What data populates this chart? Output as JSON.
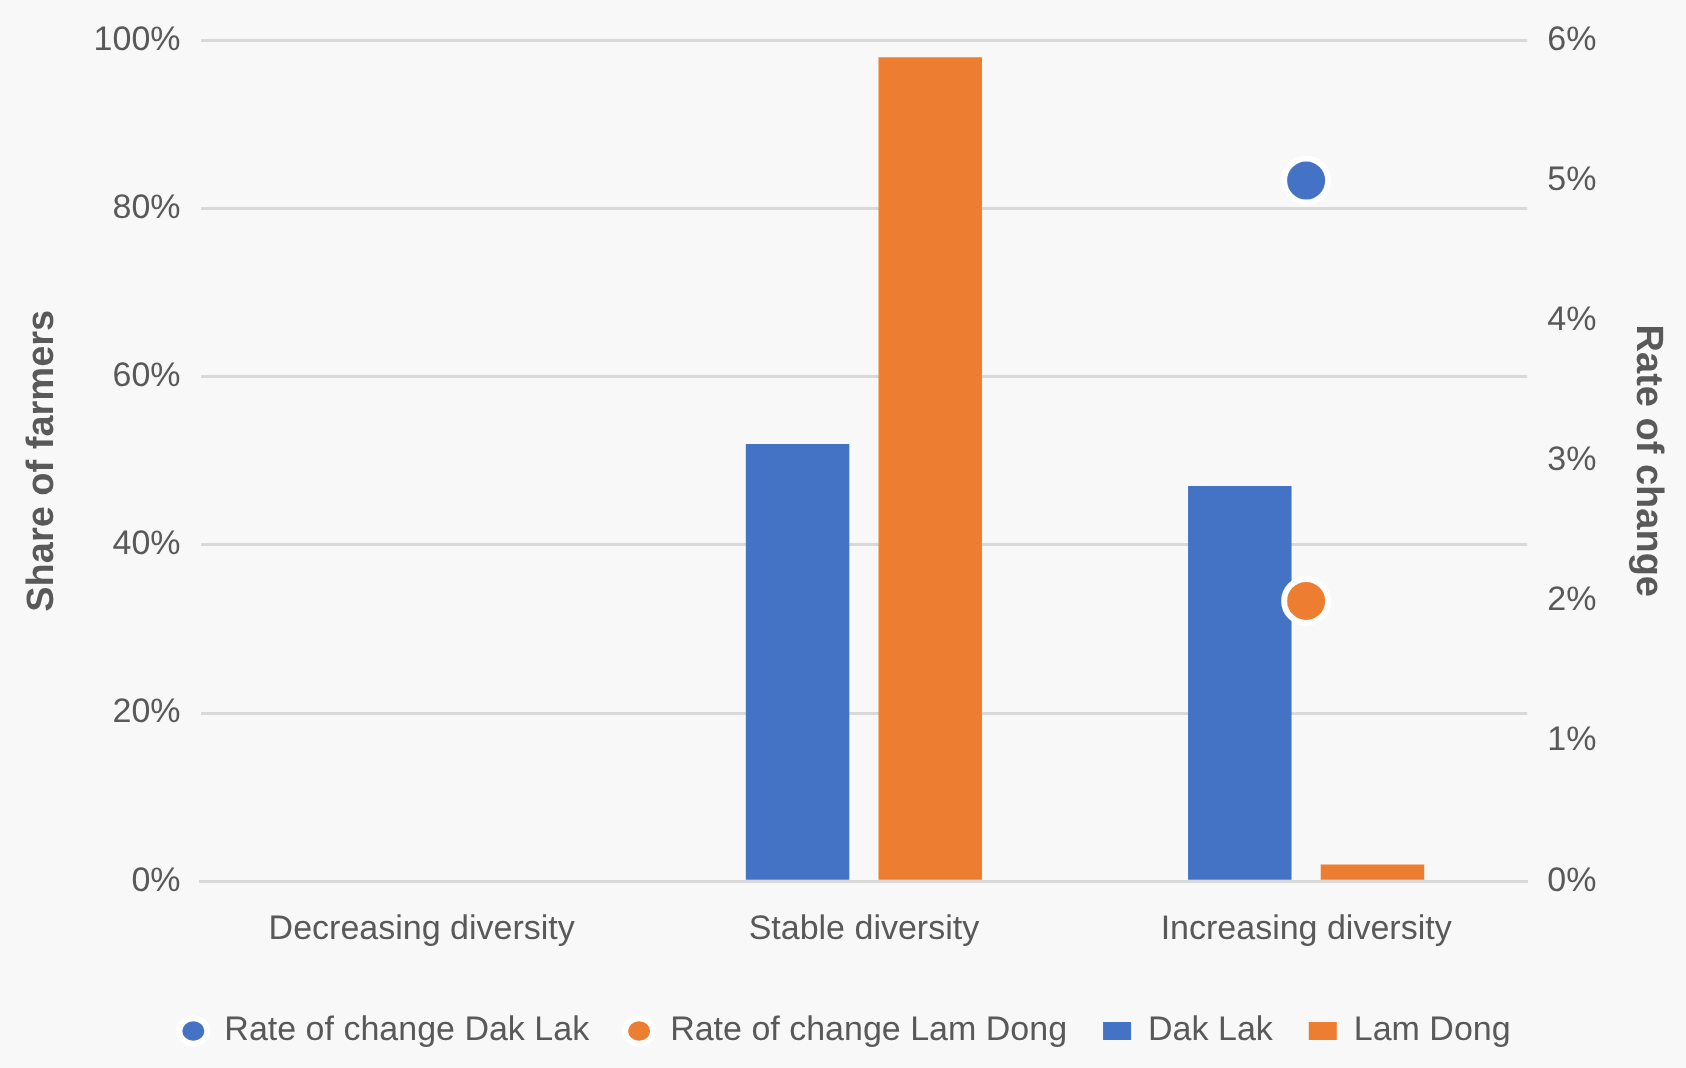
{
  "chart_data": {
    "type": "bar",
    "categories": [
      "Decreasing diversity",
      "Stable diversity",
      "Increasing diversity"
    ],
    "ylabel": "Share of farmers",
    "y2label": "Rate of change",
    "series": [
      {
        "name": "Dak Lak",
        "color": "#4472c4",
        "values": [
          0,
          52,
          47
        ]
      },
      {
        "name": "Lam Dong",
        "color": "#ed7d31",
        "values": [
          0,
          98,
          2
        ]
      },
      {
        "name": "Rate of change Dak Lak",
        "type": "scatter",
        "axis": "y2",
        "color": "#4472c4",
        "values": [
          null,
          null,
          5
        ]
      },
      {
        "name": "Rate of change Lam Dong",
        "type": "scatter",
        "axis": "y2",
        "color": "#ed7d31",
        "values": [
          null,
          null,
          2
        ]
      }
    ],
    "ylim": [
      0,
      100
    ],
    "yticks": [
      {
        "value": 0,
        "label": "0%"
      },
      {
        "value": 20,
        "label": "20%"
      },
      {
        "value": 40,
        "label": "40%"
      },
      {
        "value": 60,
        "label": "60%"
      },
      {
        "value": 80,
        "label": "80%"
      },
      {
        "value": 100,
        "label": "100%"
      }
    ],
    "y2lim": [
      0,
      6
    ],
    "y2ticks": [
      {
        "value": 0,
        "label": "0%"
      },
      {
        "value": 1,
        "label": "1%"
      },
      {
        "value": 2,
        "label": "2%"
      },
      {
        "value": 3,
        "label": "3%"
      },
      {
        "value": 4,
        "label": "4%"
      },
      {
        "value": 5,
        "label": "5%"
      },
      {
        "value": 6,
        "label": "6%"
      }
    ],
    "grid": "y",
    "legend": "bottom",
    "marker": "circle"
  }
}
